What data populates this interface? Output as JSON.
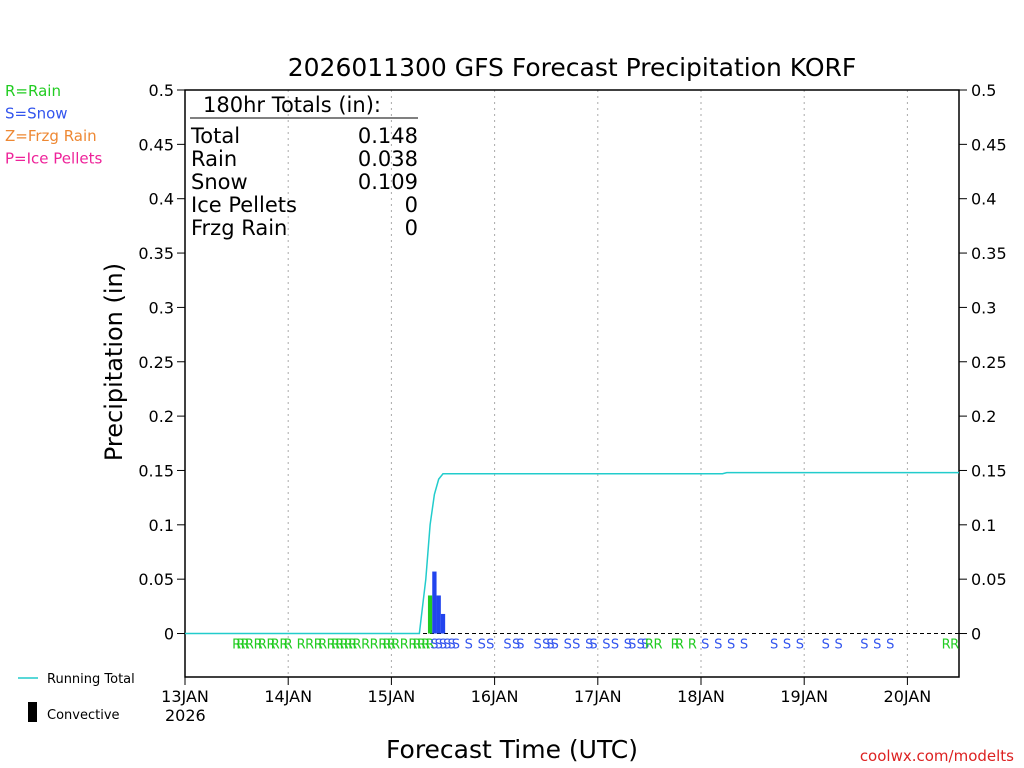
{
  "chart_data": {
    "type": "bar",
    "title": "2026011300 GFS Forecast Precipitation KORF",
    "xlabel": "Forecast Time (UTC)",
    "ylabel": "Precipitation (in)",
    "ylim": [
      -0.04,
      0.5
    ],
    "xlim_hours": [
      0,
      180
    ],
    "y_ticks": [
      "0",
      "0.05",
      "0.1",
      "0.15",
      "0.2",
      "0.25",
      "0.3",
      "0.35",
      "0.4",
      "0.45",
      "0.5"
    ],
    "y_tick_values": [
      0,
      0.05,
      0.1,
      0.15,
      0.2,
      0.25,
      0.3,
      0.35,
      0.4,
      0.45,
      0.5
    ],
    "x_ticks": [
      {
        "label": "13JAN",
        "hour": 0
      },
      {
        "label": "14JAN",
        "hour": 24
      },
      {
        "label": "15JAN",
        "hour": 48
      },
      {
        "label": "16JAN",
        "hour": 72
      },
      {
        "label": "17JAN",
        "hour": 96
      },
      {
        "label": "18JAN",
        "hour": 120
      },
      {
        "label": "19JAN",
        "hour": 144
      },
      {
        "label": "20JAN",
        "hour": 168
      }
    ],
    "year_label": "2026",
    "grid": "vertical dotted",
    "totals_box": {
      "heading": "180hr Totals (in):",
      "rows": [
        {
          "label": "Total",
          "value": "0.148"
        },
        {
          "label": "Rain",
          "value": "0.038"
        },
        {
          "label": "Snow",
          "value": "0.109"
        },
        {
          "label": "Ice Pellets",
          "value": "0"
        },
        {
          "label": "Frzg Rain",
          "value": "0"
        }
      ]
    },
    "ptype_legend": [
      {
        "text": "R=Rain",
        "color": "#22cc22"
      },
      {
        "text": "S=Snow",
        "color": "#3355ee"
      },
      {
        "text": "Z=Frzg Rain",
        "color": "#ee8833"
      },
      {
        "text": "P=Ice Pellets",
        "color": "#ee2299"
      }
    ],
    "bottom_legend": [
      {
        "text": "Running Total",
        "kind": "line",
        "color": "#22cccc"
      },
      {
        "text": "Convective",
        "kind": "bar",
        "color": "#000000"
      }
    ],
    "bars": [
      {
        "hour": 57,
        "value": 0.035,
        "type": "rain",
        "color": "#22cc22"
      },
      {
        "hour": 58,
        "value": 0.057,
        "type": "snow",
        "color": "#2244ee"
      },
      {
        "hour": 59,
        "value": 0.035,
        "type": "snow",
        "color": "#2244ee"
      },
      {
        "hour": 60,
        "value": 0.018,
        "type": "snow",
        "color": "#2244ee"
      }
    ],
    "running_total": {
      "color": "#22cccc",
      "points": [
        [
          0,
          0
        ],
        [
          54.5,
          0
        ],
        [
          56,
          0.05
        ],
        [
          57,
          0.1
        ],
        [
          58,
          0.128
        ],
        [
          59,
          0.142
        ],
        [
          60,
          0.147
        ],
        [
          125,
          0.147
        ],
        [
          126,
          0.148
        ],
        [
          180,
          0.148
        ]
      ]
    },
    "ptype_markers": [
      {
        "hour": 12,
        "type": "R"
      },
      {
        "hour": 13,
        "type": "R"
      },
      {
        "hour": 14,
        "type": "R"
      },
      {
        "hour": 15,
        "type": "R"
      },
      {
        "hour": 17,
        "type": "R"
      },
      {
        "hour": 18,
        "type": "R"
      },
      {
        "hour": 20,
        "type": "R"
      },
      {
        "hour": 21,
        "type": "R"
      },
      {
        "hour": 23,
        "type": "R"
      },
      {
        "hour": 24,
        "type": "R"
      },
      {
        "hour": 27,
        "type": "R"
      },
      {
        "hour": 29,
        "type": "R"
      },
      {
        "hour": 31,
        "type": "R"
      },
      {
        "hour": 32,
        "type": "R"
      },
      {
        "hour": 34,
        "type": "R"
      },
      {
        "hour": 35,
        "type": "R"
      },
      {
        "hour": 36,
        "type": "R"
      },
      {
        "hour": 37,
        "type": "R"
      },
      {
        "hour": 38,
        "type": "R"
      },
      {
        "hour": 39,
        "type": "R"
      },
      {
        "hour": 40,
        "type": "R"
      },
      {
        "hour": 42,
        "type": "R"
      },
      {
        "hour": 44,
        "type": "R"
      },
      {
        "hour": 46,
        "type": "R"
      },
      {
        "hour": 47,
        "type": "R"
      },
      {
        "hour": 48,
        "type": "R"
      },
      {
        "hour": 49,
        "type": "R"
      },
      {
        "hour": 51,
        "type": "R"
      },
      {
        "hour": 53,
        "type": "R"
      },
      {
        "hour": 54,
        "type": "R"
      },
      {
        "hour": 55,
        "type": "R"
      },
      {
        "hour": 56,
        "type": "R"
      },
      {
        "hour": 57,
        "type": "R"
      },
      {
        "hour": 58,
        "type": "S"
      },
      {
        "hour": 59,
        "type": "S"
      },
      {
        "hour": 60,
        "type": "S"
      },
      {
        "hour": 61,
        "type": "S"
      },
      {
        "hour": 62,
        "type": "S"
      },
      {
        "hour": 63,
        "type": "S"
      },
      {
        "hour": 66,
        "type": "S"
      },
      {
        "hour": 69,
        "type": "S"
      },
      {
        "hour": 71,
        "type": "S"
      },
      {
        "hour": 75,
        "type": "S"
      },
      {
        "hour": 77,
        "type": "S"
      },
      {
        "hour": 78,
        "type": "S"
      },
      {
        "hour": 82,
        "type": "S"
      },
      {
        "hour": 84,
        "type": "S"
      },
      {
        "hour": 85,
        "type": "S"
      },
      {
        "hour": 86,
        "type": "S"
      },
      {
        "hour": 89,
        "type": "S"
      },
      {
        "hour": 91,
        "type": "S"
      },
      {
        "hour": 94,
        "type": "S"
      },
      {
        "hour": 95,
        "type": "S"
      },
      {
        "hour": 98,
        "type": "S"
      },
      {
        "hour": 100,
        "type": "S"
      },
      {
        "hour": 103,
        "type": "S"
      },
      {
        "hour": 104,
        "type": "S"
      },
      {
        "hour": 106,
        "type": "S"
      },
      {
        "hour": 107,
        "type": "S"
      },
      {
        "hour": 108,
        "type": "R"
      },
      {
        "hour": 110,
        "type": "R"
      },
      {
        "hour": 114,
        "type": "R"
      },
      {
        "hour": 115,
        "type": "R"
      },
      {
        "hour": 118,
        "type": "R"
      },
      {
        "hour": 121,
        "type": "S"
      },
      {
        "hour": 124,
        "type": "S"
      },
      {
        "hour": 127,
        "type": "S"
      },
      {
        "hour": 130,
        "type": "S"
      },
      {
        "hour": 137,
        "type": "S"
      },
      {
        "hour": 140,
        "type": "S"
      },
      {
        "hour": 143,
        "type": "S"
      },
      {
        "hour": 149,
        "type": "S"
      },
      {
        "hour": 152,
        "type": "S"
      },
      {
        "hour": 158,
        "type": "S"
      },
      {
        "hour": 161,
        "type": "S"
      },
      {
        "hour": 164,
        "type": "S"
      },
      {
        "hour": 177,
        "type": "R"
      },
      {
        "hour": 179,
        "type": "R"
      }
    ],
    "marker_colors": {
      "R": "#22cc22",
      "S": "#3355ee"
    }
  },
  "credit": "coolwx.com/modelts",
  "credit_color": "#dd2222"
}
